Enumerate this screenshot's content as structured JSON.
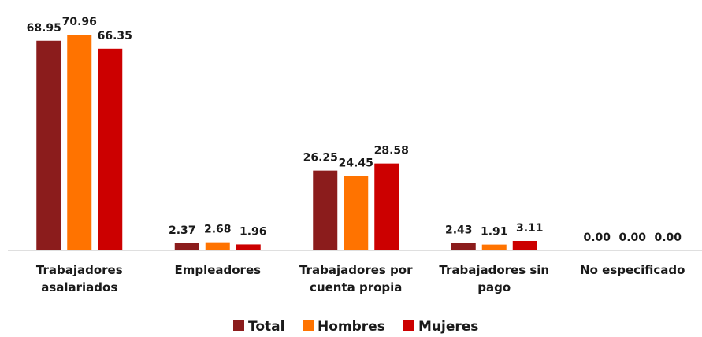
{
  "chart_data": {
    "type": "bar",
    "categories": [
      "Trabajadores asalariados",
      "Empleadores",
      "Trabajadores por cuenta propia",
      "Trabajadores sin pago",
      "No especificado"
    ],
    "series": [
      {
        "name": "Total",
        "color": "#8b1c1c",
        "values": [
          68.95,
          2.37,
          26.25,
          2.43,
          0
        ],
        "value_labels": [
          "68.95",
          "2.37",
          "26.25",
          "2.43",
          "0.00"
        ]
      },
      {
        "name": "Hombres",
        "color": "#ff7300",
        "values": [
          70.96,
          2.68,
          24.45,
          1.91,
          0
        ],
        "value_labels": [
          "70.96",
          "2.68",
          "24.45",
          "1.91",
          "0.00"
        ]
      },
      {
        "name": "Mujeres",
        "color": "#cc0000",
        "values": [
          66.35,
          1.96,
          28.58,
          3.11,
          0
        ],
        "value_labels": [
          "66.35",
          "1.96",
          "28.58",
          "3.11",
          "0.00"
        ]
      }
    ],
    "legend": "bottom"
  }
}
